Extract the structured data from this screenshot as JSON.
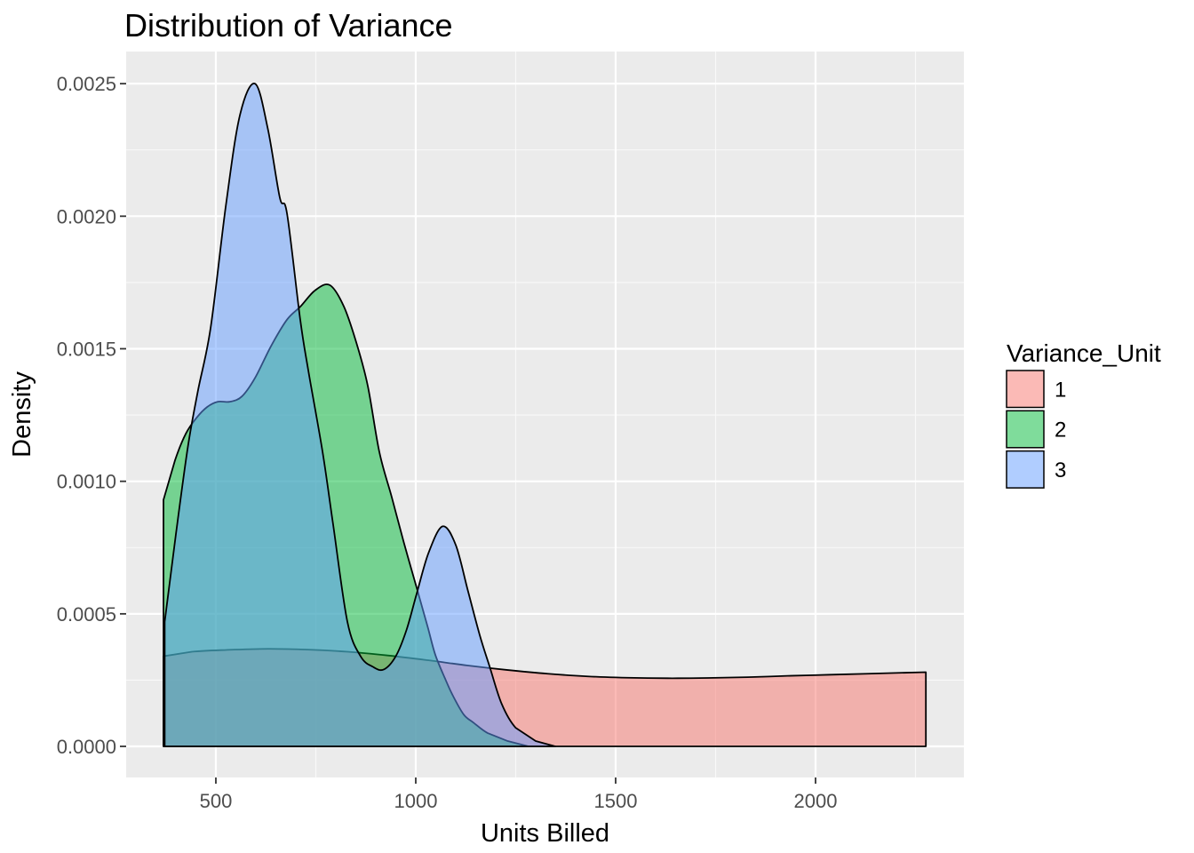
{
  "chart_data": {
    "type": "area",
    "subtype": "overlapping-density",
    "title": "Distribution of Variance",
    "xlabel": "Units Billed",
    "ylabel": "Density",
    "legend": {
      "title": "Variance_Unit",
      "position": "right",
      "items": [
        {
          "label": "1"
        },
        {
          "label": "2"
        },
        {
          "label": "3"
        }
      ]
    },
    "x_axis": {
      "range": [
        275.6,
        2371.1
      ],
      "ticks": [
        {
          "value": 500,
          "label": "500"
        },
        {
          "value": 1000,
          "label": "1000"
        },
        {
          "value": 1500,
          "label": "1500"
        },
        {
          "value": 2000,
          "label": "2000"
        }
      ],
      "minor": [
        750,
        1250,
        1750,
        2250
      ]
    },
    "y_axis": {
      "range": [
        -0.0001173,
        0.0026212
      ],
      "ticks": [
        {
          "value": 0.0,
          "label": "0.0000"
        },
        {
          "value": 0.0005,
          "label": "0.0005"
        },
        {
          "value": 0.001,
          "label": "0.0010"
        },
        {
          "value": 0.0015,
          "label": "0.0015"
        },
        {
          "value": 0.002,
          "label": "0.0020"
        },
        {
          "value": 0.0025,
          "label": "0.0025"
        }
      ],
      "minor": [
        0.00025,
        0.00075,
        0.00125,
        0.00175,
        0.00225
      ]
    },
    "style": {
      "panel_bg": "#EBEBEB",
      "grid_color": "#FFFFFF",
      "tick_mark_color": "#333333",
      "tick_label_color": "#4D4D4D",
      "text_color": "#000000",
      "outline_color": "#000000",
      "fill_alpha": 0.5
    },
    "series": [
      {
        "name": "1",
        "color": "#F8766D",
        "points": [
          [
            369,
            0
          ],
          [
            369,
            0.00034
          ],
          [
            440,
            0.000357
          ],
          [
            530,
            0.000364
          ],
          [
            630,
            0.000368
          ],
          [
            730,
            0.000365
          ],
          [
            830,
            0.000357
          ],
          [
            930,
            0.000343
          ],
          [
            1030,
            0.000325
          ],
          [
            1130,
            0.000305
          ],
          [
            1230,
            0.000288
          ],
          [
            1330,
            0.000274
          ],
          [
            1430,
            0.000264
          ],
          [
            1530,
            0.000259
          ],
          [
            1630,
            0.000257
          ],
          [
            1730,
            0.000258
          ],
          [
            1830,
            0.000261
          ],
          [
            1930,
            0.000266
          ],
          [
            2030,
            0.00027
          ],
          [
            2130,
            0.000274
          ],
          [
            2276,
            0.00028
          ],
          [
            2276,
            0
          ]
        ]
      },
      {
        "name": "2",
        "color": "#00BA38",
        "points": [
          [
            369,
            0
          ],
          [
            369,
            0.00093
          ],
          [
            398,
            0.00108
          ],
          [
            425,
            0.00118
          ],
          [
            452,
            0.00124
          ],
          [
            478,
            0.00128
          ],
          [
            505,
            0.0013
          ],
          [
            535,
            0.0013
          ],
          [
            565,
            0.00132
          ],
          [
            598,
            0.00139
          ],
          [
            638,
            0.00151
          ],
          [
            678,
            0.00161
          ],
          [
            712,
            0.00166
          ],
          [
            748,
            0.00172
          ],
          [
            785,
            0.00174
          ],
          [
            820,
            0.00166
          ],
          [
            852,
            0.00152
          ],
          [
            880,
            0.00136
          ],
          [
            909,
            0.00111
          ],
          [
            940,
            0.00094
          ],
          [
            970,
            0.00077
          ],
          [
            1002,
            0.0006
          ],
          [
            1030,
            0.00045
          ],
          [
            1049,
            0.000345
          ],
          [
            1075,
            0.00025
          ],
          [
            1093,
            0.000191
          ],
          [
            1120,
            0.00012
          ],
          [
            1144,
            9e-05
          ],
          [
            1180,
            5e-05
          ],
          [
            1230,
            2e-05
          ],
          [
            1282,
            0
          ]
        ]
      },
      {
        "name": "3",
        "color": "#619CFF",
        "points": [
          [
            372,
            0
          ],
          [
            372,
            0.00047
          ],
          [
            400,
            0.0008
          ],
          [
            430,
            0.00113
          ],
          [
            455,
            0.00134
          ],
          [
            487,
            0.00158
          ],
          [
            525,
            0.00204
          ],
          [
            560,
            0.00238
          ],
          [
            598,
            0.0025
          ],
          [
            630,
            0.00233
          ],
          [
            660,
            0.00207
          ],
          [
            678,
            0.00201
          ],
          [
            711,
            0.00161
          ],
          [
            731,
            0.00142
          ],
          [
            767,
            0.00111
          ],
          [
            793,
            0.00084
          ],
          [
            829,
            0.00047
          ],
          [
            862,
            0.00034
          ],
          [
            893,
            0.0003
          ],
          [
            920,
            0.00029
          ],
          [
            950,
            0.00034
          ],
          [
            977,
            0.00044
          ],
          [
            1003,
            0.00058
          ],
          [
            1032,
            0.00073
          ],
          [
            1067,
            0.00083
          ],
          [
            1100,
            0.00076
          ],
          [
            1130,
            0.00059
          ],
          [
            1160,
            0.00042
          ],
          [
            1185,
            0.0003
          ],
          [
            1215,
            0.00016
          ],
          [
            1250,
            7e-05
          ],
          [
            1300,
            2e-05
          ],
          [
            1349,
            0
          ]
        ]
      }
    ]
  }
}
